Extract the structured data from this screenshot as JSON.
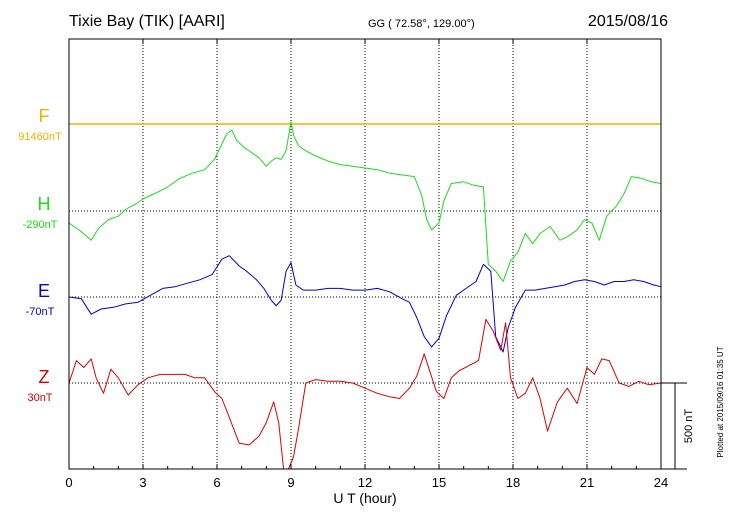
{
  "header": {
    "station": "Tixie Bay (TIK)  [AARI]",
    "coords": "GG ( 72.58°, 129.00°)",
    "date": "2015/08/16"
  },
  "footer": {
    "plotted": "Plotted at 2015/09/16 01:35 UT"
  },
  "colors": {
    "F": "#f0b000",
    "H": "#18e018",
    "E": "#0000d8",
    "Z": "#e00000",
    "frame": "#000000",
    "grid": "#000000"
  },
  "chart_data": {
    "type": "line",
    "xlabel": "U T (hour)",
    "xlim": [
      0,
      24
    ],
    "xticks": [
      0,
      3,
      6,
      9,
      12,
      15,
      18,
      21,
      24
    ],
    "tick_labels": [
      "0",
      "3",
      "6",
      "9",
      "12",
      "15",
      "18",
      "21",
      "24"
    ],
    "scale_bar": {
      "label": "500 nT",
      "value_nT": 500
    },
    "series": [
      {
        "name": "F",
        "baseline_label": "91460nT",
        "baseline_nT": 91460,
        "points": [
          [
            0,
            91460
          ],
          [
            24,
            91460
          ]
        ]
      },
      {
        "name": "H",
        "baseline_label": "-290nT",
        "baseline_nT": -290,
        "points": [
          [
            0,
            -360
          ],
          [
            0.5,
            -410
          ],
          [
            0.9,
            -460
          ],
          [
            1.2,
            -390
          ],
          [
            1.6,
            -340
          ],
          [
            2.0,
            -320
          ],
          [
            2.3,
            -280
          ],
          [
            2.7,
            -250
          ],
          [
            3.0,
            -220
          ],
          [
            3.3,
            -200
          ],
          [
            3.6,
            -180
          ],
          [
            4.0,
            -150
          ],
          [
            4.5,
            -100
          ],
          [
            5.0,
            -70
          ],
          [
            5.5,
            -50
          ],
          [
            5.9,
            10
          ],
          [
            6.2,
            100
          ],
          [
            6.4,
            160
          ],
          [
            6.6,
            180
          ],
          [
            6.8,
            120
          ],
          [
            7.1,
            80
          ],
          [
            7.4,
            50
          ],
          [
            7.7,
            20
          ],
          [
            8.0,
            -30
          ],
          [
            8.2,
            0
          ],
          [
            8.4,
            20
          ],
          [
            8.6,
            10
          ],
          [
            8.8,
            60
          ],
          [
            9.0,
            230
          ],
          [
            9.1,
            150
          ],
          [
            9.3,
            90
          ],
          [
            9.6,
            60
          ],
          [
            10.0,
            30
          ],
          [
            10.5,
            0
          ],
          [
            11.0,
            -20
          ],
          [
            11.5,
            -30
          ],
          [
            12.0,
            -40
          ],
          [
            12.5,
            -50
          ],
          [
            13.0,
            -70
          ],
          [
            13.5,
            -80
          ],
          [
            14.0,
            -90
          ],
          [
            14.3,
            -200
          ],
          [
            14.5,
            -340
          ],
          [
            14.7,
            -400
          ],
          [
            15.0,
            -360
          ],
          [
            15.2,
            -230
          ],
          [
            15.5,
            -130
          ],
          [
            16.0,
            -120
          ],
          [
            16.4,
            -140
          ],
          [
            16.8,
            -150
          ],
          [
            17.0,
            -600
          ],
          [
            17.3,
            -640
          ],
          [
            17.6,
            -700
          ],
          [
            17.9,
            -580
          ],
          [
            18.2,
            -530
          ],
          [
            18.5,
            -420
          ],
          [
            18.8,
            -480
          ],
          [
            19.1,
            -420
          ],
          [
            19.5,
            -380
          ],
          [
            19.9,
            -460
          ],
          [
            20.2,
            -440
          ],
          [
            20.6,
            -400
          ],
          [
            20.9,
            -340
          ],
          [
            21.2,
            -360
          ],
          [
            21.5,
            -460
          ],
          [
            21.8,
            -320
          ],
          [
            22.2,
            -260
          ],
          [
            22.5,
            -190
          ],
          [
            22.8,
            -90
          ],
          [
            23.2,
            -100
          ],
          [
            23.6,
            -120
          ],
          [
            24,
            -130
          ]
        ]
      },
      {
        "name": "E",
        "baseline_label": "-70nT",
        "baseline_nT": -70,
        "points": [
          [
            0,
            -70
          ],
          [
            0.5,
            -80
          ],
          [
            0.9,
            -170
          ],
          [
            1.3,
            -140
          ],
          [
            1.8,
            -130
          ],
          [
            2.3,
            -110
          ],
          [
            2.8,
            -100
          ],
          [
            3.3,
            -60
          ],
          [
            3.8,
            -20
          ],
          [
            4.3,
            -10
          ],
          [
            4.8,
            10
          ],
          [
            5.3,
            30
          ],
          [
            5.8,
            60
          ],
          [
            6.2,
            150
          ],
          [
            6.5,
            170
          ],
          [
            6.9,
            110
          ],
          [
            7.2,
            80
          ],
          [
            7.6,
            30
          ],
          [
            7.9,
            -20
          ],
          [
            8.2,
            -90
          ],
          [
            8.4,
            -120
          ],
          [
            8.6,
            -90
          ],
          [
            8.8,
            80
          ],
          [
            9.0,
            130
          ],
          [
            9.2,
            0
          ],
          [
            9.5,
            -30
          ],
          [
            10.0,
            -30
          ],
          [
            10.5,
            -20
          ],
          [
            11.0,
            -20
          ],
          [
            11.5,
            -30
          ],
          [
            12.0,
            -30
          ],
          [
            12.5,
            -20
          ],
          [
            13.0,
            -40
          ],
          [
            13.5,
            -80
          ],
          [
            13.8,
            -100
          ],
          [
            14.1,
            -190
          ],
          [
            14.4,
            -300
          ],
          [
            14.7,
            -360
          ],
          [
            15.0,
            -310
          ],
          [
            15.3,
            -180
          ],
          [
            15.7,
            -60
          ],
          [
            16.1,
            -20
          ],
          [
            16.5,
            20
          ],
          [
            16.8,
            120
          ],
          [
            17.1,
            80
          ],
          [
            17.3,
            -300
          ],
          [
            17.6,
            -390
          ],
          [
            17.8,
            -250
          ],
          [
            18.1,
            -130
          ],
          [
            18.5,
            -30
          ],
          [
            18.9,
            -30
          ],
          [
            19.3,
            -20
          ],
          [
            19.7,
            -10
          ],
          [
            20.1,
            0
          ],
          [
            20.5,
            20
          ],
          [
            20.9,
            30
          ],
          [
            21.3,
            20
          ],
          [
            21.7,
            0
          ],
          [
            22.1,
            20
          ],
          [
            22.5,
            20
          ],
          [
            22.9,
            30
          ],
          [
            23.3,
            20
          ],
          [
            23.7,
            0
          ],
          [
            24,
            -10
          ]
        ]
      },
      {
        "name": "Z",
        "baseline_label": "30nT",
        "baseline_nT": 30,
        "points": [
          [
            0,
            30
          ],
          [
            0.3,
            160
          ],
          [
            0.6,
            120
          ],
          [
            0.9,
            170
          ],
          [
            1.1,
            60
          ],
          [
            1.4,
            -30
          ],
          [
            1.7,
            110
          ],
          [
            2.0,
            60
          ],
          [
            2.4,
            -40
          ],
          [
            2.8,
            20
          ],
          [
            3.2,
            60
          ],
          [
            3.7,
            80
          ],
          [
            4.2,
            80
          ],
          [
            4.7,
            80
          ],
          [
            5.1,
            60
          ],
          [
            5.5,
            60
          ],
          [
            5.9,
            -20
          ],
          [
            6.2,
            -60
          ],
          [
            6.5,
            -170
          ],
          [
            6.9,
            -320
          ],
          [
            7.3,
            -330
          ],
          [
            7.7,
            -280
          ],
          [
            8.0,
            -200
          ],
          [
            8.3,
            -80
          ],
          [
            8.5,
            -200
          ],
          [
            8.7,
            -500
          ],
          [
            8.9,
            -480
          ],
          [
            9.1,
            -400
          ],
          [
            9.3,
            -240
          ],
          [
            9.6,
            30
          ],
          [
            10.0,
            50
          ],
          [
            10.5,
            40
          ],
          [
            11.0,
            40
          ],
          [
            11.5,
            30
          ],
          [
            12.0,
            0
          ],
          [
            12.5,
            -30
          ],
          [
            13.0,
            -50
          ],
          [
            13.4,
            -60
          ],
          [
            13.8,
            0
          ],
          [
            14.1,
            70
          ],
          [
            14.4,
            200
          ],
          [
            14.6,
            110
          ],
          [
            14.9,
            -20
          ],
          [
            15.2,
            -60
          ],
          [
            15.5,
            60
          ],
          [
            15.8,
            100
          ],
          [
            16.2,
            130
          ],
          [
            16.6,
            160
          ],
          [
            16.9,
            400
          ],
          [
            17.2,
            330
          ],
          [
            17.5,
            220
          ],
          [
            17.7,
            380
          ],
          [
            17.9,
            60
          ],
          [
            18.2,
            -60
          ],
          [
            18.5,
            -30
          ],
          [
            18.8,
            60
          ],
          [
            19.1,
            -60
          ],
          [
            19.4,
            -250
          ],
          [
            19.8,
            -80
          ],
          [
            20.2,
            0
          ],
          [
            20.6,
            -90
          ],
          [
            21.0,
            120
          ],
          [
            21.3,
            80
          ],
          [
            21.6,
            170
          ],
          [
            21.9,
            160
          ],
          [
            22.3,
            30
          ],
          [
            22.7,
            10
          ],
          [
            23.1,
            40
          ],
          [
            23.5,
            20
          ],
          [
            24,
            30
          ]
        ]
      }
    ]
  }
}
